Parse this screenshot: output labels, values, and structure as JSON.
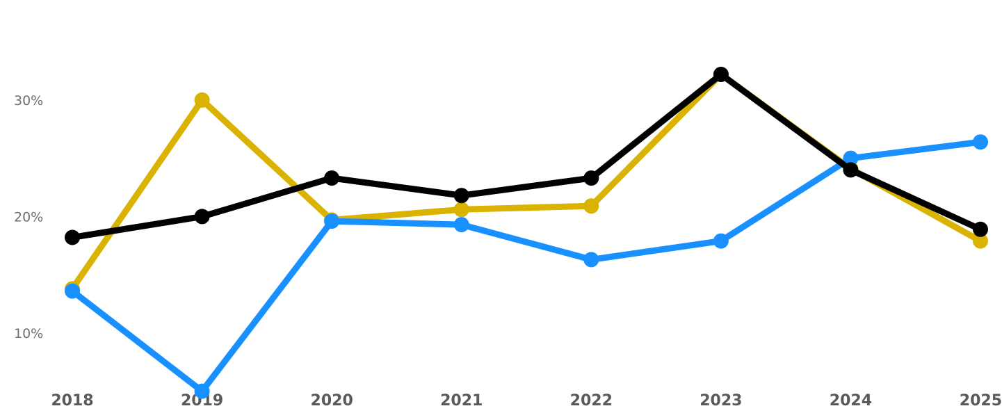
{
  "chart_data": {
    "type": "line",
    "title": "",
    "xlabel": "",
    "ylabel": "",
    "categories": [
      "2018",
      "2019",
      "2020",
      "2021",
      "2022",
      "2023",
      "2024",
      "2025"
    ],
    "y_ticks": [
      {
        "value": 10,
        "label": "10%"
      },
      {
        "value": 20,
        "label": "20%"
      },
      {
        "value": 30,
        "label": "30%"
      }
    ],
    "ylim": [
      4.8,
      36.8
    ],
    "grid": false,
    "legend": "none",
    "series": [
      {
        "color": "#D9B300",
        "values": [
          13.8,
          30.0,
          19.7,
          20.6,
          20.9,
          32.2,
          24.1,
          17.9
        ]
      },
      {
        "color": "#1890FF",
        "values": [
          13.6,
          5.0,
          19.6,
          19.3,
          16.3,
          17.9,
          25.0,
          26.4
        ]
      },
      {
        "color": "#000000",
        "values": [
          18.2,
          20.0,
          23.3,
          21.8,
          23.3,
          32.2,
          24.0,
          18.9
        ]
      }
    ]
  }
}
